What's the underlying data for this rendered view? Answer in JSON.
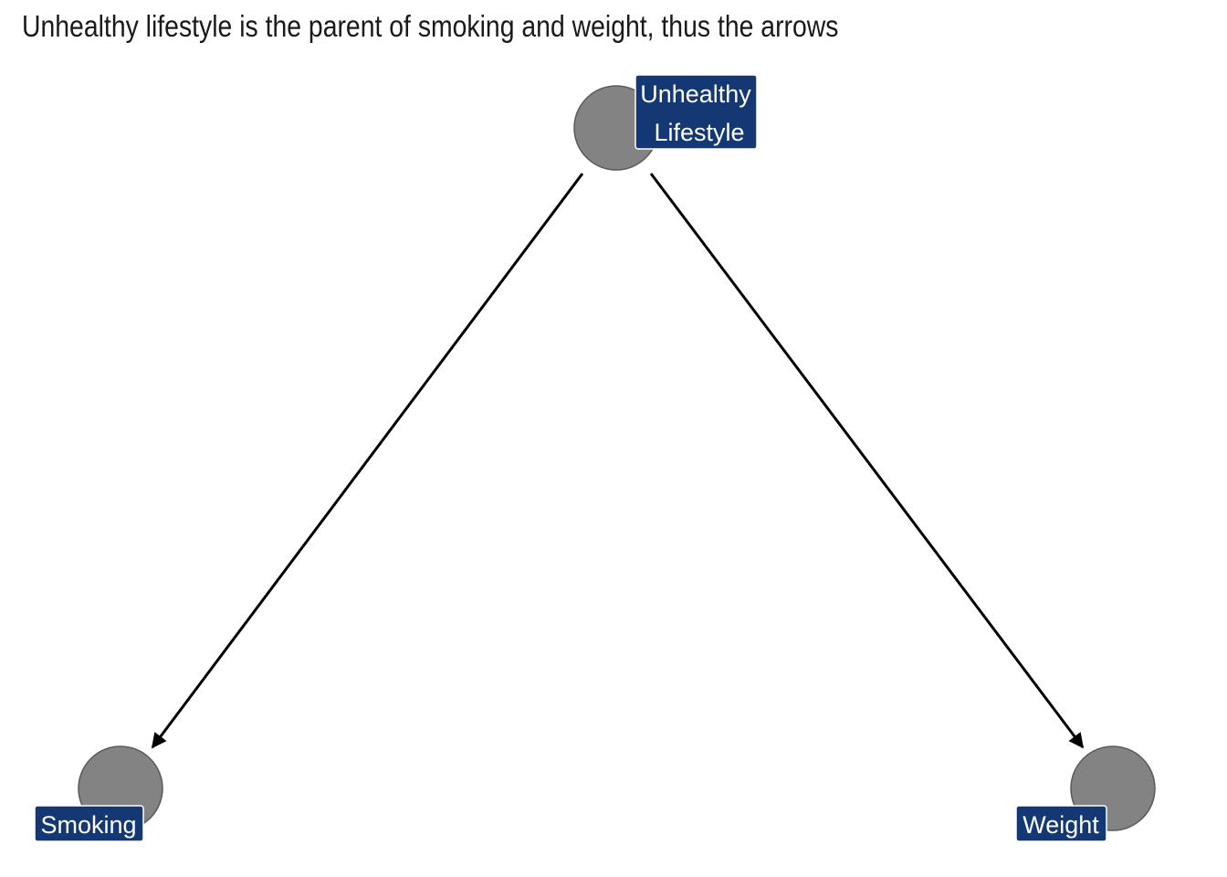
{
  "title": "Unhealthy lifestyle is the parent of smoking and weight, thus the arrows",
  "colors": {
    "node_fill": "#838383",
    "label_bg": "#133873",
    "label_text": "#ffffff",
    "edge": "#000000"
  },
  "nodes": [
    {
      "id": "unhealthy_lifestyle",
      "label_lines": [
        "Unhealthy",
        "Lifestyle"
      ]
    },
    {
      "id": "smoking",
      "label_lines": [
        "Smoking"
      ]
    },
    {
      "id": "weight",
      "label_lines": [
        "Weight"
      ]
    }
  ],
  "edges": [
    {
      "from": "unhealthy_lifestyle",
      "to": "smoking"
    },
    {
      "from": "unhealthy_lifestyle",
      "to": "weight"
    }
  ]
}
